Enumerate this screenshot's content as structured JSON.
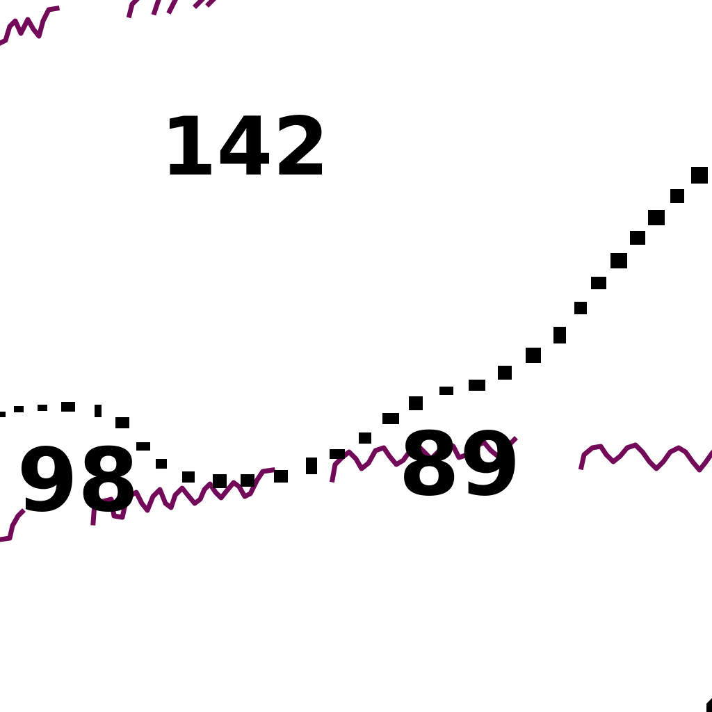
{
  "map": {
    "spot_heights": {
      "peak": "142",
      "west": "98",
      "east": "89"
    },
    "colors": {
      "background": "#ffffff",
      "text": "#000000",
      "dotted_boundary": "#000000",
      "wavy_feature": "#730a59"
    },
    "line_styles": {
      "boundary": "dotted",
      "feature": "wavy"
    }
  }
}
